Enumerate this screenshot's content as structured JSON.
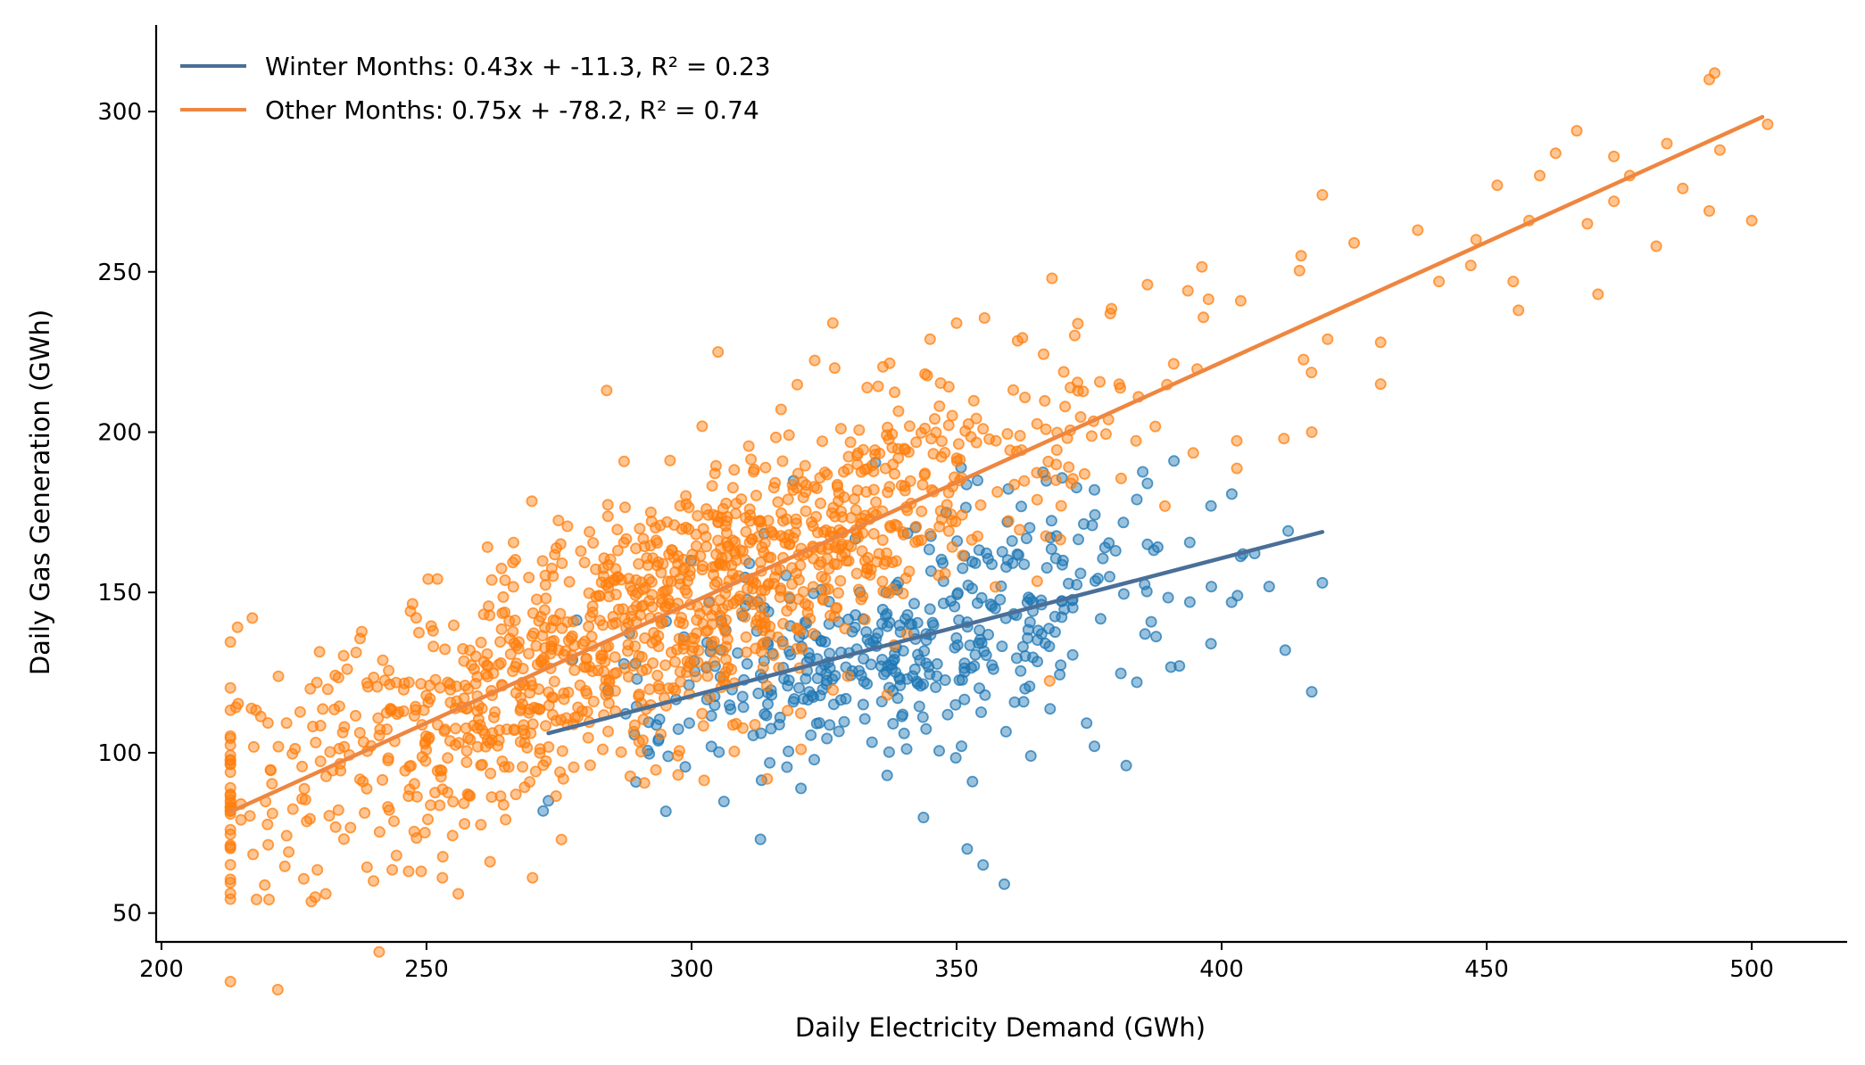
{
  "chart_data": {
    "type": "scatter",
    "title": "",
    "xlabel": "Daily Electricity Demand (GWh)",
    "ylabel": "Daily Gas Generation (GWh)",
    "xlim": [
      199,
      518
    ],
    "ylim": [
      41,
      327
    ],
    "xticks": [
      200,
      250,
      300,
      350,
      400,
      450,
      500
    ],
    "yticks": [
      50,
      100,
      150,
      200,
      250,
      300
    ],
    "grid": false,
    "legend_position": "top-left",
    "series": [
      {
        "name": "Winter Months: 0.43x + -11.3, R² = 0.23",
        "color": "#1f77b4",
        "line_color": "#4a6f98",
        "fit": {
          "slope": 0.43,
          "intercept": -11.3,
          "x_range": [
            273,
            419
          ]
        },
        "cloud": {
          "x_mean": 340,
          "x_sd": 24,
          "x_min": 272,
          "x_max": 420,
          "resid_sd": 18,
          "count": 430,
          "seed": 7
        },
        "points": [
          [
            273,
            85
          ],
          [
            313,
            73
          ],
          [
            352,
            70
          ],
          [
            355,
            65
          ],
          [
            359,
            59
          ],
          [
            353,
            91
          ],
          [
            391,
            191
          ],
          [
            376,
            182
          ],
          [
            386,
            184
          ],
          [
            398,
            177
          ],
          [
            412,
            132
          ],
          [
            417,
            119
          ],
          [
            419,
            153
          ],
          [
            404,
            162
          ],
          [
            403,
            149
          ],
          [
            382,
            96
          ],
          [
            384,
            122
          ],
          [
            376,
            102
          ],
          [
            364,
            99
          ],
          [
            398,
            134
          ],
          [
            394,
            147
          ],
          [
            380,
            163
          ],
          [
            378,
            164
          ],
          [
            384,
            179
          ],
          [
            386,
            165
          ]
        ]
      },
      {
        "name": "Other Months: 0.75x + -78.2, R² = 0.74",
        "color": "#ff7f0e",
        "line_color": "#ee8640",
        "fit": {
          "slope": 0.75,
          "intercept": -78.2,
          "x_range": [
            213,
            502
          ]
        },
        "cloud": {
          "x_mean": 295,
          "x_sd": 42,
          "x_min": 213,
          "x_max": 503,
          "resid_sd": 20,
          "count": 1250,
          "seed": 13
        },
        "points": [
          [
            213,
            76
          ],
          [
            215,
            84
          ],
          [
            229,
            55
          ],
          [
            231,
            56
          ],
          [
            240,
            60
          ],
          [
            249,
            63
          ],
          [
            256,
            56
          ],
          [
            262,
            66
          ],
          [
            270,
            61
          ],
          [
            253,
            61
          ],
          [
            493,
            312
          ],
          [
            492,
            310
          ],
          [
            494,
            288
          ],
          [
            500,
            266
          ],
          [
            503,
            296
          ],
          [
            492,
            269
          ],
          [
            487,
            276
          ],
          [
            482,
            258
          ],
          [
            471,
            243
          ],
          [
            467,
            294
          ],
          [
            474,
            286
          ],
          [
            477,
            280
          ],
          [
            469,
            265
          ],
          [
            460,
            280
          ],
          [
            455,
            247
          ],
          [
            456,
            238
          ],
          [
            419,
            274
          ],
          [
            430,
            215
          ],
          [
            417,
            200
          ],
          [
            305,
            225
          ],
          [
            327,
            220
          ],
          [
            284,
            213
          ],
          [
            368,
            248
          ],
          [
            379,
            237
          ],
          [
            386,
            246
          ],
          [
            350,
            234
          ],
          [
            345,
            229
          ],
          [
            430,
            228
          ],
          [
            420,
            229
          ],
          [
            452,
            277
          ],
          [
            458,
            266
          ],
          [
            463,
            287
          ],
          [
            447,
            252
          ],
          [
            437,
            263
          ],
          [
            441,
            247
          ],
          [
            425,
            259
          ],
          [
            415,
            255
          ],
          [
            448,
            260
          ],
          [
            474,
            272
          ],
          [
            484,
            290
          ]
        ]
      }
    ]
  }
}
